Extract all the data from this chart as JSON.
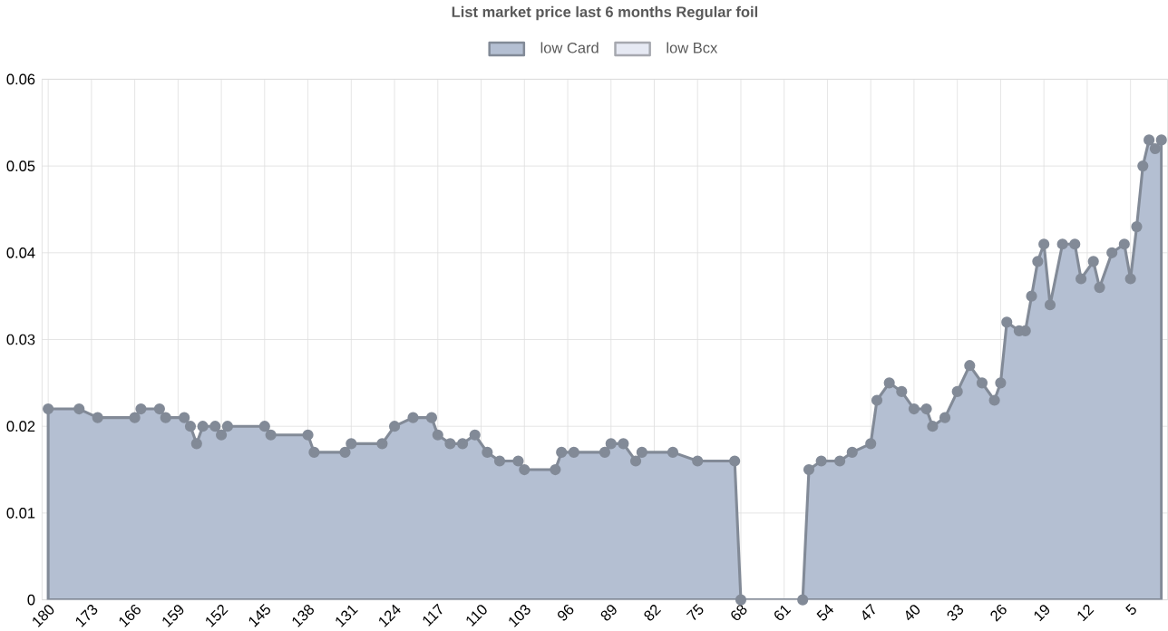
{
  "chart_data": {
    "type": "area",
    "title": "List market price last 6 months Regular foil",
    "xlim": [
      181,
      -1
    ],
    "xticks": [
      180,
      173,
      166,
      159,
      152,
      145,
      138,
      131,
      124,
      117,
      110,
      103,
      96,
      89,
      82,
      75,
      68,
      61,
      54,
      47,
      40,
      33,
      26,
      19,
      12,
      5
    ],
    "ylim": [
      0,
      0.06
    ],
    "yticks": [
      0,
      0.01,
      0.02,
      0.03,
      0.04,
      0.05,
      0.06
    ],
    "grid": true,
    "legend": "top",
    "marker": "circle",
    "series": [
      {
        "name": "low Card",
        "color": "#b4bfd2",
        "x": [
          180,
          175,
          172,
          166,
          165,
          162,
          161,
          158,
          157,
          156,
          155,
          153,
          152,
          151,
          145,
          144,
          138,
          137,
          132,
          131,
          126,
          124,
          121,
          118,
          117,
          115,
          113,
          111,
          109,
          107,
          104,
          103,
          98,
          97,
          95,
          90,
          89,
          87,
          85,
          84,
          79,
          75,
          69,
          68,
          58,
          57,
          55,
          52,
          50,
          47,
          46,
          44,
          42,
          40,
          38,
          37,
          35,
          33,
          31,
          29,
          27,
          26,
          25,
          23,
          22,
          21,
          20,
          19,
          18,
          16,
          14,
          13,
          11,
          10,
          8,
          6,
          5,
          4,
          3,
          2,
          1,
          0
        ],
        "values": [
          0.022,
          0.022,
          0.021,
          0.021,
          0.022,
          0.022,
          0.021,
          0.021,
          0.02,
          0.018,
          0.02,
          0.02,
          0.019,
          0.02,
          0.02,
          0.019,
          0.019,
          0.017,
          0.017,
          0.018,
          0.018,
          0.02,
          0.021,
          0.021,
          0.019,
          0.018,
          0.018,
          0.019,
          0.017,
          0.016,
          0.016,
          0.015,
          0.015,
          0.017,
          0.017,
          0.017,
          0.018,
          0.018,
          0.016,
          0.017,
          0.017,
          0.016,
          0.016,
          0,
          0,
          0.015,
          0.016,
          0.016,
          0.017,
          0.018,
          0.023,
          0.025,
          0.024,
          0.022,
          0.022,
          0.02,
          0.021,
          0.024,
          0.027,
          0.025,
          0.023,
          0.025,
          0.032,
          0.031,
          0.031,
          0.035,
          0.039,
          0.041,
          0.034,
          0.041,
          0.041,
          0.037,
          0.039,
          0.036,
          0.04,
          0.041,
          0.037,
          0.043,
          0.05,
          0.053,
          0.052,
          0.053
        ]
      },
      {
        "name": "low Bcx",
        "color": "#e6e9f3"
      }
    ]
  }
}
